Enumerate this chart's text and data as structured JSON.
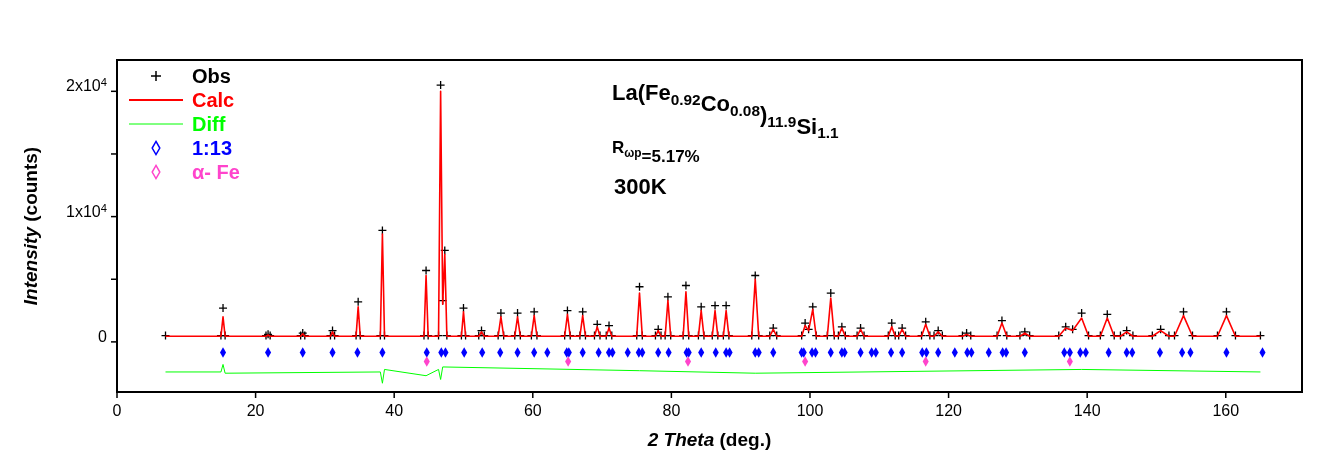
{
  "chart_data": {
    "type": "line",
    "xlabel": "2 Theta (deg.)",
    "ylabel": "Intensity (counts)",
    "xlim": [
      0,
      171
    ],
    "ylim": [
      -4000,
      22500
    ],
    "xticks": [
      0,
      20,
      40,
      60,
      80,
      100,
      120,
      140,
      160
    ],
    "yticks": [
      {
        "value": 0,
        "label": "0"
      },
      {
        "value": 5000,
        "label": null
      },
      {
        "value": 10000,
        "label": "1x10$^{4}$"
      },
      {
        "value": 15000,
        "label": null
      },
      {
        "value": 20000,
        "label": "2x10$^{4}$"
      }
    ],
    "grid": false,
    "legend": "top left",
    "annotations": [
      "La(Fe$_{0.92}$Co$_{0.08}$)$_{11.9}$Si$_{1.1}$",
      "R$_{ωp}$=5.17%",
      "300K"
    ],
    "series": [
      {
        "name": "Obs",
        "type": "scatter",
        "marker": "cross",
        "color": "#000000",
        "x": [
          7,
          15.0,
          15.3,
          15.6,
          21.5,
          21.8,
          22.1,
          26.5,
          26.8,
          27.1,
          30.8,
          31.1,
          31.4,
          34.5,
          34.8,
          35.1,
          38.0,
          38.3,
          38.6,
          44.3,
          44.6,
          44.9,
          46.4,
          46.7,
          47.0,
          47.3,
          47.6,
          49.7,
          50.0,
          50.3,
          52.2,
          52.6,
          53.0,
          55.0,
          55.4,
          55.8,
          57.4,
          57.8,
          58.2,
          59.8,
          60.2,
          60.6,
          64.6,
          65.0,
          65.4,
          66.8,
          67.2,
          67.6,
          68.9,
          69.3,
          69.7,
          70.6,
          71.0,
          71.4,
          75.0,
          75.4,
          75.8,
          77.7,
          78.1,
          78.5,
          79.1,
          79.5,
          79.9,
          81.7,
          82.1,
          82.5,
          83.9,
          84.3,
          84.7,
          85.9,
          86.3,
          86.7,
          87.5,
          87.9,
          88.3,
          91.6,
          92.1,
          92.6,
          94.2,
          94.7,
          95.2,
          98.8,
          99.3,
          99.8,
          100.4,
          100.9,
          102.5,
          103.0,
          103.5,
          104.1,
          104.6,
          105.1,
          106.8,
          107.3,
          107.8,
          111.3,
          111.8,
          112.3,
          112.8,
          113.3,
          113.8,
          116.1,
          116.7,
          117.3,
          117.9,
          118.5,
          119.1,
          122.0,
          122.6,
          123.2,
          127.0,
          127.7,
          128.4,
          130.3,
          131.0,
          131.7,
          135.9,
          136.9,
          137.9,
          139.2,
          140.2,
          141.9,
          142.9,
          143.9,
          144.8,
          145.7,
          146.6,
          149.4,
          150.6,
          151.8,
          152.6,
          153.9,
          155.2,
          158.8,
          160.1,
          161.4,
          165
        ],
        "values": [
          500,
          500,
          2700,
          500,
          500,
          600,
          500,
          500,
          700,
          500,
          500,
          900,
          500,
          500,
          3200,
          500,
          500,
          8900,
          500,
          500,
          5700,
          500,
          500,
          20500,
          3300,
          7300,
          500,
          500,
          2700,
          500,
          500,
          900,
          500,
          500,
          2300,
          500,
          500,
          2300,
          500,
          500,
          2400,
          500,
          500,
          2500,
          500,
          500,
          2400,
          500,
          500,
          1400,
          500,
          500,
          1300,
          500,
          500,
          4400,
          500,
          500,
          1000,
          500,
          500,
          3600,
          500,
          500,
          4500,
          500,
          500,
          2800,
          500,
          500,
          2900,
          500,
          500,
          2900,
          500,
          500,
          5300,
          500,
          500,
          1100,
          500,
          500,
          1500,
          1000,
          2800,
          500,
          500,
          3900,
          500,
          500,
          1200,
          500,
          500,
          1100,
          500,
          500,
          1500,
          500,
          500,
          1100,
          500,
          500,
          1600,
          500,
          500,
          900,
          500,
          500,
          700,
          500,
          500,
          1700,
          500,
          500,
          800,
          500,
          500,
          1200,
          1000,
          2300,
          500,
          500,
          2200,
          500,
          500,
          900,
          500,
          500,
          1000,
          500,
          500,
          2400,
          500,
          500,
          2400,
          500,
          500
        ]
      },
      {
        "name": "Calc",
        "color": "#ff0000",
        "x": [
          7,
          15.0,
          15.3,
          15.6,
          21.5,
          21.8,
          22.1,
          26.5,
          26.8,
          27.1,
          30.8,
          31.1,
          31.4,
          34.5,
          34.8,
          35.1,
          38.0,
          38.3,
          38.6,
          44.3,
          44.6,
          44.9,
          46.4,
          46.7,
          47.0,
          47.3,
          47.6,
          49.7,
          50.0,
          50.3,
          52.2,
          52.6,
          53.0,
          55.0,
          55.4,
          55.8,
          57.4,
          57.8,
          58.2,
          59.8,
          60.2,
          60.6,
          64.6,
          65.0,
          65.4,
          66.8,
          67.2,
          67.6,
          68.9,
          69.3,
          69.7,
          70.6,
          71.0,
          71.4,
          75.0,
          75.4,
          75.8,
          77.7,
          78.1,
          78.5,
          79.1,
          79.5,
          79.9,
          81.7,
          82.1,
          82.5,
          83.9,
          84.3,
          84.7,
          85.9,
          86.3,
          86.7,
          87.5,
          87.9,
          88.3,
          91.6,
          92.1,
          92.6,
          94.2,
          94.7,
          95.2,
          98.8,
          99.3,
          99.8,
          100.4,
          100.9,
          102.5,
          103.0,
          103.5,
          104.1,
          104.6,
          105.1,
          106.8,
          107.3,
          107.8,
          111.3,
          111.8,
          112.3,
          112.8,
          113.3,
          113.8,
          116.1,
          116.7,
          117.3,
          117.9,
          118.5,
          119.1,
          122.0,
          122.6,
          123.2,
          127.0,
          127.7,
          128.4,
          130.3,
          131.0,
          131.7,
          135.9,
          136.9,
          137.9,
          139.2,
          140.2,
          141.9,
          142.9,
          143.9,
          144.8,
          145.7,
          146.6,
          149.4,
          150.6,
          151.8,
          152.6,
          153.9,
          155.2,
          158.8,
          160.1,
          161.4,
          165
        ],
        "values": [
          450,
          450,
          2000,
          450,
          450,
          550,
          450,
          450,
          650,
          450,
          450,
          800,
          450,
          450,
          2800,
          450,
          450,
          8600,
          450,
          450,
          5300,
          450,
          450,
          20000,
          3000,
          7000,
          450,
          450,
          2400,
          450,
          450,
          800,
          450,
          450,
          2000,
          450,
          450,
          2000,
          450,
          450,
          2100,
          450,
          450,
          2200,
          450,
          450,
          2100,
          450,
          450,
          1200,
          450,
          450,
          1100,
          450,
          450,
          3900,
          450,
          450,
          900,
          450,
          450,
          3300,
          450,
          450,
          4000,
          450,
          450,
          2500,
          450,
          450,
          2500,
          450,
          450,
          2500,
          450,
          450,
          5000,
          450,
          450,
          1000,
          450,
          450,
          1300,
          900,
          2600,
          450,
          450,
          3500,
          450,
          450,
          1100,
          450,
          450,
          1000,
          450,
          450,
          1200,
          450,
          450,
          1000,
          450,
          450,
          1400,
          450,
          450,
          800,
          450,
          450,
          600,
          450,
          450,
          1500,
          450,
          450,
          700,
          450,
          450,
          1100,
          900,
          1900,
          450,
          450,
          1900,
          450,
          450,
          800,
          450,
          450,
          900,
          450,
          450,
          2100,
          450,
          450,
          2100,
          450,
          450
        ]
      },
      {
        "name": "Diff",
        "color": "#00ff00",
        "x": [
          7,
          15.0,
          15.3,
          15.6,
          38.0,
          38.3,
          38.6,
          44.6,
          46.4,
          46.7,
          47.0,
          75.4,
          92.1,
          139.2,
          165
        ],
        "values": [
          -2400,
          -2400,
          -1800,
          -2500,
          -2400,
          -3300,
          -2200,
          -2700,
          -2200,
          -3000,
          -2000,
          -2300,
          -2500,
          -2200,
          -2400
        ]
      },
      {
        "name": "1:13",
        "type": "scatter",
        "marker": "diamond",
        "color": "#0000ff",
        "x": [
          15.3,
          21.8,
          26.8,
          31.1,
          34.7,
          38.3,
          44.7,
          46.8,
          47.4,
          50.1,
          52.7,
          55.3,
          57.8,
          60.2,
          62.1,
          64.9,
          65.2,
          67.2,
          69.5,
          71.0,
          71.5,
          73.7,
          75.3,
          75.8,
          78.1,
          79.6,
          82.2,
          82.5,
          84.3,
          86.4,
          87.9,
          88.4,
          92.1,
          92.6,
          94.7,
          98.8,
          99.1,
          100.3,
          100.8,
          103.0,
          104.6,
          105.0,
          107.3,
          108.9,
          109.5,
          111.7,
          113.3,
          116.2,
          116.8,
          118.5,
          120.9,
          122.7,
          123.3,
          125.8,
          127.8,
          128.3,
          131.0,
          136.7,
          137.5,
          139.0,
          139.8,
          143.1,
          145.7,
          146.5,
          150.5,
          153.7,
          154.9,
          160.1,
          165.3
        ],
        "values": [
          -850,
          -850,
          -850,
          -850,
          -850,
          -850,
          -850,
          -850,
          -850,
          -850,
          -850,
          -850,
          -850,
          -850,
          -850,
          -850,
          -850,
          -850,
          -850,
          -850,
          -850,
          -850,
          -850,
          -850,
          -850,
          -850,
          -850,
          -850,
          -850,
          -850,
          -850,
          -850,
          -850,
          -850,
          -850,
          -850,
          -850,
          -850,
          -850,
          -850,
          -850,
          -850,
          -850,
          -850,
          -850,
          -850,
          -850,
          -850,
          -850,
          -850,
          -850,
          -850,
          -850,
          -850,
          -850,
          -850,
          -850,
          -850,
          -850,
          -850,
          -850,
          -850,
          -850,
          -850,
          -850,
          -850,
          -850,
          -850,
          -850
        ]
      },
      {
        "name": "α- Fe",
        "type": "scatter",
        "marker": "diamond",
        "color": "#ff44cc",
        "x": [
          44.7,
          65.1,
          82.4,
          99.3,
          116.7,
          137.5
        ],
        "values": [
          -1560,
          -1560,
          -1560,
          -1560,
          -1560,
          -1560
        ]
      }
    ]
  }
}
